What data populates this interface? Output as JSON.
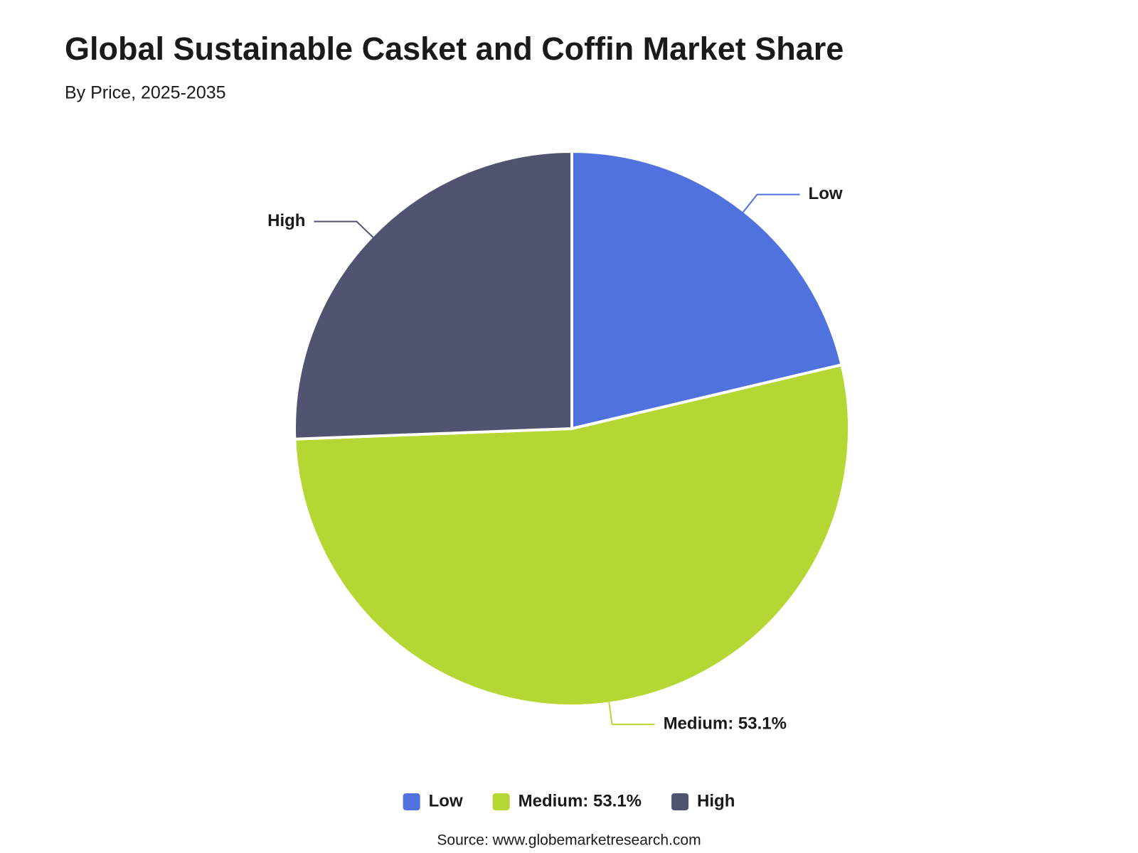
{
  "chart_data": {
    "type": "pie",
    "title": "Global Sustainable Casket and Coffin Market Share",
    "subtitle": "By Price, 2025-2035",
    "categories": [
      "Low",
      "Medium: 53.1%",
      "High"
    ],
    "values": [
      21.3,
      53.1,
      25.6
    ],
    "colors": [
      "#4f72de",
      "#b5d733",
      "#515470"
    ],
    "legend": "bottom",
    "source": "Source: www.globemarketresearch.com"
  }
}
